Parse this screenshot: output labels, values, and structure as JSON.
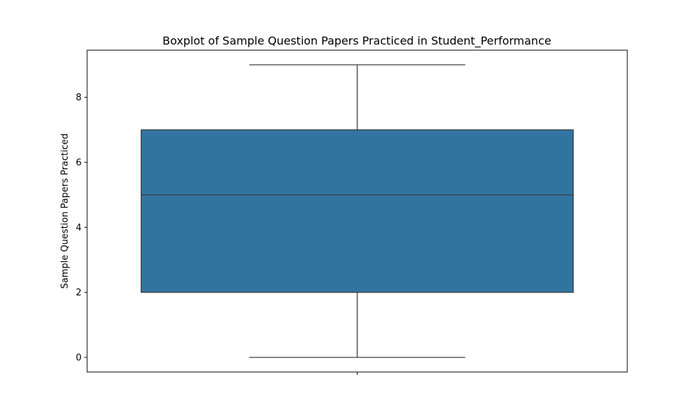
{
  "chart_data": {
    "type": "boxplot",
    "title": "Boxplot of Sample Question Papers Practiced in Student_Performance",
    "xlabel": "",
    "ylabel": "Sample Question Papers Practiced",
    "ylim": [
      -0.45,
      9.45
    ],
    "yticks": [
      0,
      2,
      4,
      6,
      8
    ],
    "box": {
      "min": 0,
      "q1": 2,
      "median": 5,
      "q3": 7,
      "max": 9
    },
    "colors": {
      "box_fill": "#3274a1",
      "line": "#3d3d3d",
      "frame": "#000000"
    },
    "grid": false
  }
}
